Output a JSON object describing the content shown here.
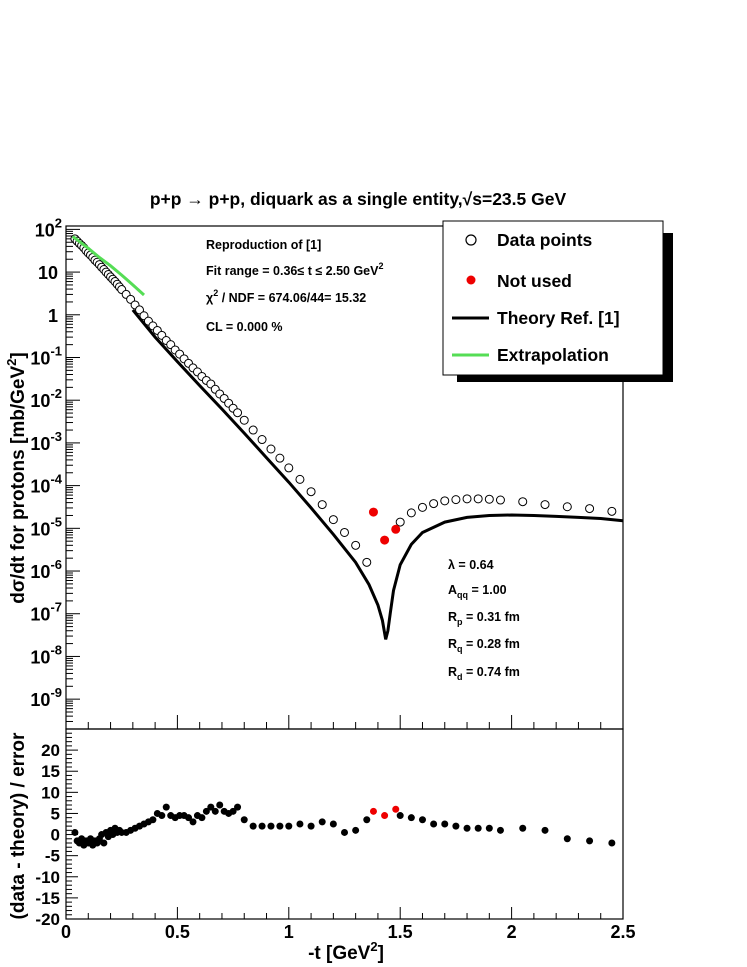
{
  "figure": {
    "title_prefix": "p+p → p+p, diquark as a single entity,",
    "title_sqrt": "√",
    "title_suffix": "s=23.5 GeV"
  },
  "info_box": {
    "line1": "Reproduction of [1]",
    "line2_prefix": "Fit range = 0.36≤ t ≤ 2.50 GeV",
    "line2_sup": "2",
    "line3_chi": "χ",
    "line3_sup": "2",
    "line3_rest": " / NDF = 674.06/44= 15.32",
    "line4": "CL = 0.000 %"
  },
  "legend": {
    "data_points": "Data points",
    "not_used": "Not used",
    "theory": "Theory Ref. [1]",
    "extrapolation": "Extrapolation"
  },
  "params": [
    {
      "sym": "λ",
      "sub": "",
      "rest": " = 0.64"
    },
    {
      "sym": "A",
      "sub": "qq",
      "rest": " = 1.00"
    },
    {
      "sym": "R",
      "sub": "p",
      "rest": " = 0.31 fm"
    },
    {
      "sym": "R",
      "sub": "q",
      "rest": " = 0.28 fm"
    },
    {
      "sym": "R",
      "sub": "d",
      "rest": " = 0.74 fm"
    }
  ],
  "colors": {
    "frame": "#000000",
    "theory": "#000000",
    "extrapolation": "#55dd55",
    "not_used": "#ee0000",
    "data_fill": "#ffffff"
  },
  "chart_data": [
    {
      "type": "scatter",
      "ylabel": "dσ/dt for protons [mb/GeV²]",
      "ylabel_parts": {
        "base": "dσ/dt for protons [mb/GeV",
        "sup": "2",
        "close": "]"
      },
      "yscale": "log",
      "ylim": [
        2e-10,
        120
      ],
      "xlim": [
        0,
        2.5
      ],
      "ytick_labels": [
        {
          "base": "10",
          "exp": "2",
          "value": 100
        },
        {
          "base": "10",
          "exp": "",
          "value": 10
        },
        {
          "base": "1",
          "exp": "",
          "value": 1
        },
        {
          "base": "10",
          "exp": "-1",
          "value": 0.1
        },
        {
          "base": "10",
          "exp": "-2",
          "value": 0.01
        },
        {
          "base": "10",
          "exp": "-3",
          "value": 0.001
        },
        {
          "base": "10",
          "exp": "-4",
          "value": 0.0001
        },
        {
          "base": "10",
          "exp": "-5",
          "value": 1e-05
        },
        {
          "base": "10",
          "exp": "-6",
          "value": 1e-06
        },
        {
          "base": "10",
          "exp": "-7",
          "value": 1e-07
        },
        {
          "base": "10",
          "exp": "-8",
          "value": 1e-08
        },
        {
          "base": "10",
          "exp": "-9",
          "value": 1e-09
        }
      ],
      "data_points": {
        "x": [
          0.04,
          0.05,
          0.06,
          0.07,
          0.08,
          0.09,
          0.1,
          0.11,
          0.12,
          0.13,
          0.14,
          0.15,
          0.16,
          0.17,
          0.18,
          0.19,
          0.2,
          0.21,
          0.22,
          0.23,
          0.24,
          0.25,
          0.27,
          0.29,
          0.31,
          0.33,
          0.35,
          0.37,
          0.39,
          0.41,
          0.43,
          0.45,
          0.47,
          0.49,
          0.51,
          0.53,
          0.55,
          0.57,
          0.59,
          0.61,
          0.63,
          0.65,
          0.67,
          0.69,
          0.71,
          0.73,
          0.75,
          0.77,
          0.8,
          0.84,
          0.88,
          0.92,
          0.96,
          1.0,
          1.05,
          1.1,
          1.15,
          1.2,
          1.25,
          1.3,
          1.35,
          1.5,
          1.55,
          1.6,
          1.65,
          1.7,
          1.75,
          1.8,
          1.85,
          1.9,
          1.95,
          2.05,
          2.15,
          2.25,
          2.35,
          2.45
        ],
        "y": [
          60,
          53,
          47,
          42,
          37,
          32,
          28,
          25,
          22,
          19,
          17,
          15,
          13,
          11.5,
          10,
          8.8,
          7.7,
          6.8,
          6.0,
          5.2,
          4.5,
          3.9,
          3.0,
          2.3,
          1.7,
          1.3,
          0.95,
          0.71,
          0.55,
          0.43,
          0.33,
          0.25,
          0.2,
          0.15,
          0.12,
          0.093,
          0.073,
          0.057,
          0.046,
          0.036,
          0.029,
          0.024,
          0.018,
          0.014,
          0.011,
          0.0085,
          0.0065,
          0.0051,
          0.0034,
          0.002,
          0.0012,
          0.00072,
          0.00044,
          0.00026,
          0.00014,
          7.2e-05,
          3.6e-05,
          1.6e-05,
          8e-06,
          4e-06,
          1.6e-06,
          1.4e-05,
          2.3e-05,
          3.1e-05,
          3.8e-05,
          4.4e-05,
          4.7e-05,
          4.9e-05,
          4.9e-05,
          4.8e-05,
          4.6e-05,
          4.2e-05,
          3.6e-05,
          3.2e-05,
          2.9e-05,
          2.5e-05
        ]
      },
      "not_used_points": {
        "x": [
          1.38,
          1.43,
          1.48
        ],
        "y": [
          2.4e-05,
          5.3e-06,
          9.5e-06
        ]
      },
      "theory_curve": {
        "x": [
          0.3,
          0.4,
          0.5,
          0.6,
          0.7,
          0.8,
          0.9,
          1.0,
          1.1,
          1.2,
          1.3,
          1.36,
          1.4,
          1.42,
          1.435,
          1.445,
          1.455,
          1.47,
          1.5,
          1.55,
          1.6,
          1.7,
          1.8,
          1.9,
          2.0,
          2.1,
          2.2,
          2.3,
          2.4,
          2.5
        ],
        "y": [
          1.3,
          0.3,
          0.08,
          0.022,
          0.0062,
          0.0017,
          0.00045,
          0.00012,
          3e-05,
          7.2e-06,
          1.6e-06,
          4.8e-07,
          1.6e-07,
          7e-08,
          2.5e-08,
          4e-08,
          1e-07,
          3.5e-07,
          1.4e-06,
          4.2e-06,
          8e-06,
          1.4e-05,
          1.8e-05,
          2e-05,
          2.05e-05,
          2e-05,
          1.9e-05,
          1.8e-05,
          1.7e-05,
          1.5e-05
        ]
      },
      "extrapolation_curve": {
        "x": [
          0.03,
          0.06,
          0.1,
          0.15,
          0.2,
          0.25,
          0.3,
          0.35
        ],
        "y": [
          68,
          52,
          36,
          22,
          14,
          8.5,
          5.0,
          2.9
        ]
      }
    },
    {
      "type": "scatter",
      "xlabel": "-t [GeV²]",
      "xlabel_parts": {
        "base": "-t [GeV",
        "sup": "2",
        "close": "]"
      },
      "ylabel": "(data - theory) / error",
      "xlim": [
        0,
        2.5
      ],
      "ylim": [
        -20,
        25
      ],
      "xtick_labels": [
        "0",
        "0.5",
        "1",
        "1.5",
        "2",
        "2.5"
      ],
      "ytick_labels": [
        "20",
        "15",
        "10",
        "5",
        "0",
        "-5",
        "-10",
        "-15",
        "-20"
      ],
      "residual_points": {
        "x": [
          0.04,
          0.05,
          0.06,
          0.07,
          0.08,
          0.09,
          0.1,
          0.11,
          0.12,
          0.13,
          0.14,
          0.15,
          0.16,
          0.17,
          0.18,
          0.19,
          0.2,
          0.21,
          0.22,
          0.23,
          0.24,
          0.25,
          0.27,
          0.29,
          0.31,
          0.33,
          0.35,
          0.37,
          0.39,
          0.41,
          0.43,
          0.45,
          0.47,
          0.49,
          0.51,
          0.53,
          0.55,
          0.57,
          0.59,
          0.61,
          0.63,
          0.65,
          0.67,
          0.69,
          0.71,
          0.73,
          0.75,
          0.77,
          0.8,
          0.84,
          0.88,
          0.92,
          0.96,
          1.0,
          1.05,
          1.1,
          1.15,
          1.2,
          1.25,
          1.3,
          1.35,
          1.5,
          1.55,
          1.6,
          1.65,
          1.7,
          1.75,
          1.8,
          1.85,
          1.9,
          1.95,
          2.05,
          2.15,
          2.25,
          2.35,
          2.45
        ],
        "y": [
          0.5,
          -1.5,
          -2.0,
          -1.0,
          -2.5,
          -1.5,
          -2.0,
          -1.0,
          -2.5,
          -1.5,
          -2.0,
          -1.0,
          0.0,
          -2.0,
          0.5,
          -0.5,
          1.0,
          0.0,
          1.5,
          0.5,
          1.0,
          0.5,
          0.5,
          1.0,
          1.5,
          2.0,
          2.5,
          3.0,
          3.5,
          5.0,
          4.5,
          6.5,
          4.5,
          4.0,
          4.5,
          4.5,
          4.0,
          3.0,
          4.5,
          4.0,
          5.5,
          6.5,
          5.5,
          7.0,
          5.5,
          5.0,
          5.5,
          6.5,
          3.5,
          2.0,
          2.0,
          2.0,
          2.0,
          2.0,
          2.5,
          2.0,
          3.0,
          2.5,
          0.5,
          1.0,
          3.5,
          4.5,
          4.0,
          3.5,
          2.5,
          2.5,
          2.0,
          1.5,
          1.5,
          1.5,
          1.0,
          1.5,
          1.0,
          -1.0,
          -1.5,
          -2.0
        ]
      },
      "residual_not_used": {
        "x": [
          1.38,
          1.43,
          1.48
        ],
        "y": [
          5.5,
          4.5,
          6.0
        ]
      }
    }
  ]
}
